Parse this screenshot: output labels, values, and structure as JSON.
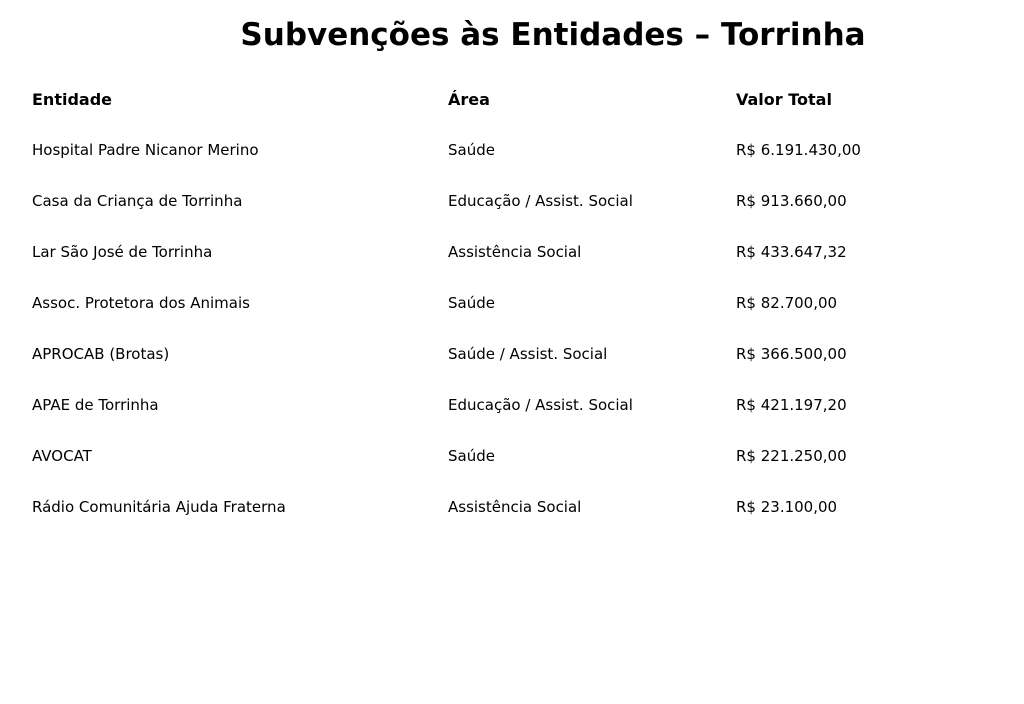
{
  "title": "Subvenções às Entidades – Torrinha",
  "table": {
    "headers": [
      "Entidade",
      "Área",
      "Valor Total"
    ],
    "rows": [
      [
        "Hospital Padre Nicanor Merino",
        "Saúde",
        "R$ 6.191.430,00"
      ],
      [
        "Casa da Criança de Torrinha",
        "Educação / Assist. Social",
        "R$ 913.660,00"
      ],
      [
        "Lar São José de Torrinha",
        "Assistência Social",
        "R$ 433.647,32"
      ],
      [
        "Assoc. Protetora dos Animais",
        "Saúde",
        "R$ 82.700,00"
      ],
      [
        "APROCAB (Brotas)",
        "Saúde / Assist. Social",
        "R$ 366.500,00"
      ],
      [
        "APAE de Torrinha",
        "Educação / Assist. Social",
        "R$ 421.197,20"
      ],
      [
        "AVOCAT",
        "Saúde",
        "R$ 221.250,00"
      ],
      [
        "Rádio Comunitária Ajuda Fraterna",
        "Assistência Social",
        "R$ 23.100,00"
      ]
    ]
  }
}
